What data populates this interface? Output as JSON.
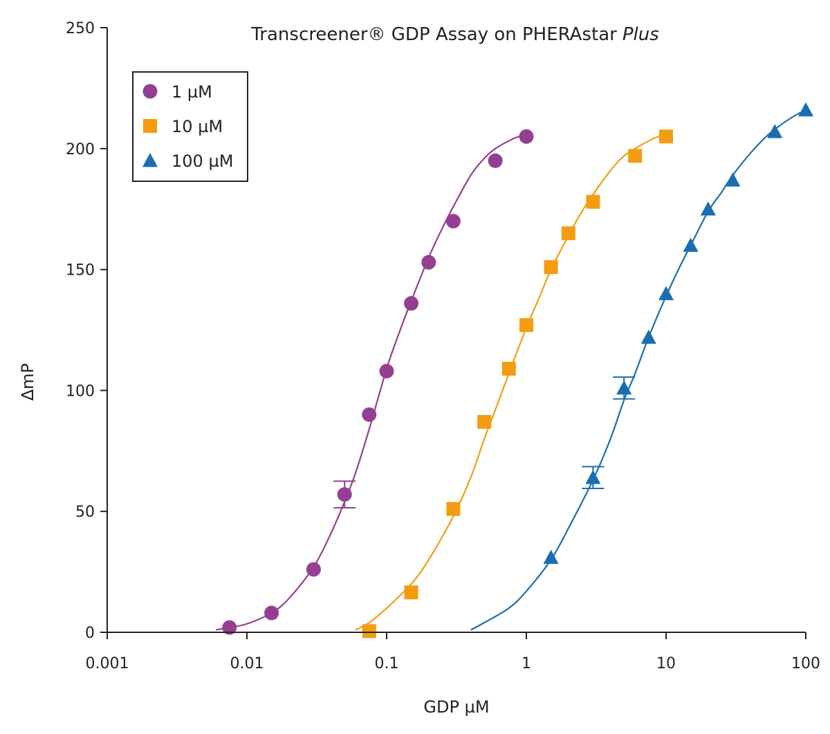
{
  "chart_data": {
    "type": "scatter",
    "title": "Transcreener® GDP Assay on PHERAstar",
    "title_italic": "Plus",
    "xlabel": "GDP µM",
    "ylabel": "∆mP",
    "x_scale": "log",
    "xlim": [
      0.001,
      100
    ],
    "ylim": [
      0,
      250
    ],
    "x_ticks": [
      "0.001",
      "0.01",
      "0.1",
      "1",
      "10",
      "100"
    ],
    "x_tick_values": [
      0.001,
      0.01,
      0.1,
      1,
      10,
      100
    ],
    "y_ticks": [
      "0",
      "50",
      "100",
      "150",
      "200",
      "250"
    ],
    "y_tick_values": [
      0,
      50,
      100,
      150,
      200,
      250
    ],
    "grid": false,
    "legend_position": "top-left",
    "series": [
      {
        "name": "1 µM",
        "marker": "circle",
        "color": "#943f92",
        "x": [
          0.0075,
          0.015,
          0.03,
          0.05,
          0.075,
          0.1,
          0.15,
          0.2,
          0.3,
          0.6,
          1.0
        ],
        "y": [
          2,
          8,
          26,
          57,
          90,
          108,
          136,
          153,
          170,
          195,
          205
        ],
        "error": [
          null,
          null,
          null,
          5.5,
          null,
          null,
          null,
          null,
          null,
          null,
          null
        ],
        "fit_x": [
          0.006,
          0.0075,
          0.01,
          0.015,
          0.02,
          0.03,
          0.04,
          0.05,
          0.06,
          0.075,
          0.1,
          0.125,
          0.15,
          0.2,
          0.25,
          0.3,
          0.4,
          0.5,
          0.6,
          0.8,
          1.0
        ],
        "fit_y": [
          1,
          2,
          3.5,
          8,
          14,
          27,
          41,
          54,
          66,
          84,
          109,
          125,
          137,
          155,
          167,
          176,
          189,
          196,
          200,
          204,
          206
        ]
      },
      {
        "name": "10 µM",
        "marker": "square",
        "color": "#f39c12",
        "x": [
          0.075,
          0.15,
          0.3,
          0.5,
          0.75,
          1.0,
          1.5,
          2.0,
          3.0,
          6.0,
          10.0
        ],
        "y": [
          0.5,
          16.5,
          51,
          87,
          109,
          127,
          151,
          165,
          178,
          197,
          205
        ],
        "error": [
          null,
          null,
          null,
          null,
          null,
          null,
          null,
          null,
          null,
          null,
          null
        ],
        "fit_x": [
          0.06,
          0.075,
          0.1,
          0.15,
          0.2,
          0.3,
          0.4,
          0.5,
          0.6,
          0.75,
          1.0,
          1.25,
          1.5,
          2.0,
          2.5,
          3.0,
          4.0,
          5.0,
          6.0,
          8.0,
          10.0
        ],
        "fit_y": [
          1,
          4,
          10,
          20,
          30,
          48,
          64,
          80,
          92,
          107,
          126,
          139,
          150,
          164,
          174,
          181,
          191,
          197,
          200,
          204,
          206
        ]
      },
      {
        "name": "100 µM",
        "marker": "triangle",
        "color": "#1a6db3",
        "x": [
          1.5,
          3.0,
          5.0,
          7.5,
          10.0,
          15.0,
          20.0,
          30.0,
          60.0,
          100.0
        ],
        "y": [
          31,
          64,
          101,
          122,
          140,
          160,
          175,
          187,
          207,
          216
        ],
        "error": [
          null,
          4.5,
          4.5,
          null,
          null,
          null,
          null,
          null,
          null,
          null
        ],
        "fit_x": [
          0.4,
          0.5,
          0.75,
          1.0,
          1.5,
          2.0,
          3.0,
          4.0,
          5.0,
          6.0,
          7.5,
          10.0,
          12.5,
          15.0,
          20.0,
          25.0,
          30.0,
          40.0,
          50.0,
          60.0,
          80.0,
          100.0
        ],
        "fit_y": [
          1,
          4,
          10,
          17,
          30,
          43,
          63,
          80,
          96,
          107,
          122,
          139,
          151,
          160,
          174,
          182,
          189,
          198,
          204,
          208,
          213,
          216
        ]
      }
    ]
  }
}
